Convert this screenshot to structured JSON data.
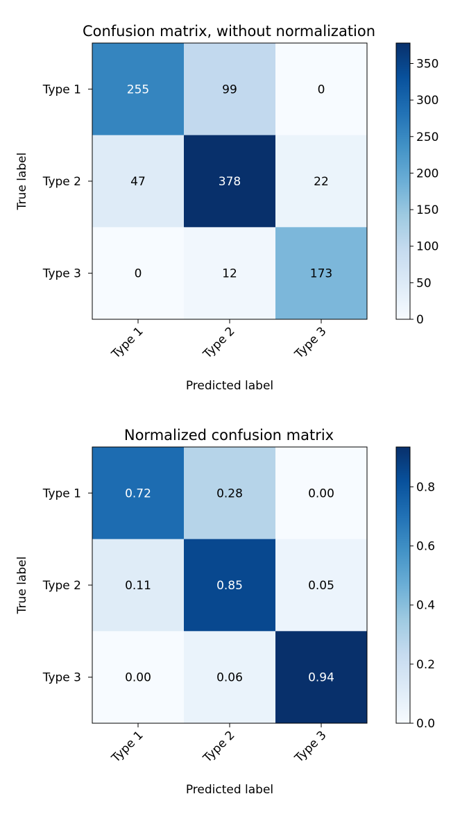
{
  "chart_data": [
    {
      "type": "heatmap",
      "title": "Confusion matrix, without normalization",
      "xlabel": "Predicted label",
      "ylabel": "True label",
      "x_categories": [
        "Type 1",
        "Type 2",
        "Type 3"
      ],
      "y_categories": [
        "Type 1",
        "Type 2",
        "Type 3"
      ],
      "values": [
        [
          255,
          99,
          0
        ],
        [
          47,
          378,
          22
        ],
        [
          0,
          12,
          173
        ]
      ],
      "value_labels": [
        [
          "255",
          "99",
          "0"
        ],
        [
          "47",
          "378",
          "22"
        ],
        [
          "0",
          "12",
          "173"
        ]
      ],
      "colormap": "Blues",
      "color_range": [
        0,
        378
      ],
      "colorbar_ticks": [
        0,
        50,
        100,
        150,
        200,
        250,
        300,
        350
      ],
      "colorbar_tick_labels": [
        "0",
        "50",
        "100",
        "150",
        "200",
        "250",
        "300",
        "350"
      ]
    },
    {
      "type": "heatmap",
      "title": "Normalized confusion matrix",
      "xlabel": "Predicted label",
      "ylabel": "True label",
      "x_categories": [
        "Type 1",
        "Type 2",
        "Type 3"
      ],
      "y_categories": [
        "Type 1",
        "Type 2",
        "Type 3"
      ],
      "values": [
        [
          0.72,
          0.28,
          0.0
        ],
        [
          0.11,
          0.85,
          0.05
        ],
        [
          0.0,
          0.06,
          0.94
        ]
      ],
      "value_labels": [
        [
          "0.72",
          "0.28",
          "0.00"
        ],
        [
          "0.11",
          "0.85",
          "0.05"
        ],
        [
          "0.00",
          "0.06",
          "0.94"
        ]
      ],
      "colormap": "Blues",
      "color_range": [
        0,
        0.935
      ],
      "colorbar_ticks": [
        0,
        0.2,
        0.4,
        0.6,
        0.8
      ],
      "colorbar_tick_labels": [
        "0.0",
        "0.2",
        "0.4",
        "0.6",
        "0.8"
      ]
    }
  ]
}
